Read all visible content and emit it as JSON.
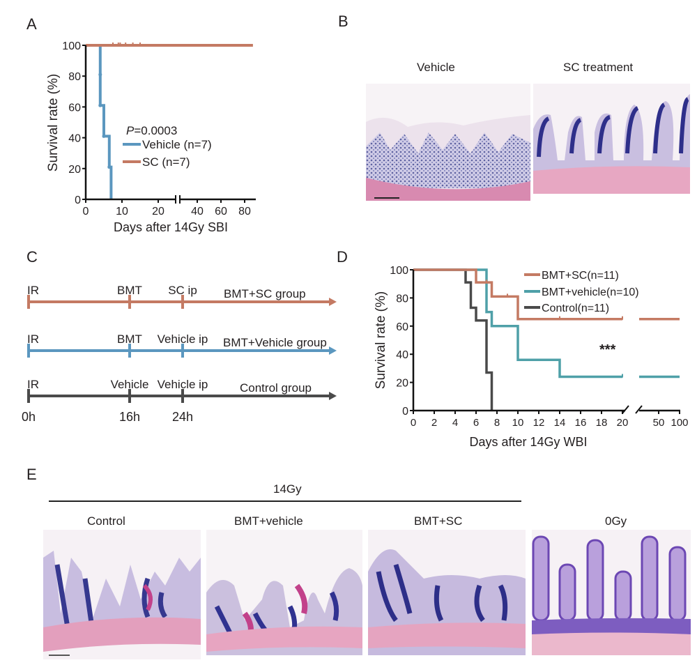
{
  "panels": {
    "A": "A",
    "B": "B",
    "C": "C",
    "D": "D",
    "E": "E"
  },
  "colors": {
    "sc": "#c47a63",
    "vehicle": "#5b97bf",
    "vehicle_d": "#4fa0a8",
    "control": "#4a4a4a",
    "axis": "#111111"
  },
  "chart_data": [
    {
      "id": "A",
      "type": "line",
      "title": "",
      "xlabel": "Days after 14Gy SBI",
      "ylabel": "Survival rate (%)",
      "ylim": [
        0,
        100
      ],
      "yticks": [
        "0",
        "20",
        "40",
        "60",
        "80",
        "100"
      ],
      "xticks": [
        "0",
        "10",
        "20",
        "40",
        "60",
        "80"
      ],
      "axis_break": "between 20 and 40",
      "annotation_prefix": "P",
      "annotation_rest": "=0.0003",
      "legend_placement": "center",
      "series": [
        {
          "name": "Vehicle (n=7)",
          "color_key": "vehicle",
          "steps": [
            [
              0,
              100
            ],
            [
              4,
              100
            ],
            [
              4,
              81
            ],
            [
              4,
              61
            ],
            [
              5,
              61
            ],
            [
              5,
              41
            ],
            [
              6.5,
              41
            ],
            [
              6.5,
              21
            ],
            [
              7,
              21
            ],
            [
              7,
              0
            ]
          ]
        },
        {
          "name": "SC (n=7)",
          "color_key": "sc",
          "steps": [
            [
              0,
              100
            ],
            [
              90,
              100
            ]
          ],
          "censored": [
            7.5,
            9,
            9.5,
            11,
            13,
            15
          ]
        }
      ]
    },
    {
      "id": "D",
      "type": "line",
      "title": "",
      "xlabel": "Days after 14Gy WBI",
      "ylabel": "Survival rate (%)",
      "ylim": [
        0,
        100
      ],
      "yticks": [
        "0",
        "20",
        "40",
        "60",
        "80",
        "100"
      ],
      "xticks": [
        "0",
        "2",
        "4",
        "6",
        "8",
        "10",
        "12",
        "14",
        "16",
        "18",
        "20",
        "50",
        "100"
      ],
      "axis_break": "between 20 and 50",
      "annotation": "***",
      "legend_placement": "top-right",
      "series": [
        {
          "name": "BMT+SC(n=11)",
          "color_key": "sc",
          "steps": [
            [
              0,
              100
            ],
            [
              6,
              100
            ],
            [
              6,
              91
            ],
            [
              7.5,
              91
            ],
            [
              7.5,
              81
            ],
            [
              10,
              81
            ],
            [
              10,
              65
            ],
            [
              20,
              65
            ]
          ],
          "after_break": 65,
          "censored": [
            7,
            9,
            14,
            20
          ]
        },
        {
          "name": "BMT+vehicle(n=10)",
          "color_key": "vehicle_d",
          "steps": [
            [
              0,
              100
            ],
            [
              7,
              100
            ],
            [
              7,
              90
            ],
            [
              7,
              70
            ],
            [
              7.5,
              70
            ],
            [
              7.5,
              60
            ],
            [
              10,
              60
            ],
            [
              10,
              36
            ],
            [
              14,
              36
            ],
            [
              14,
              24
            ],
            [
              20,
              24
            ]
          ],
          "after_break": 24,
          "censored": [
            20
          ]
        },
        {
          "name": "Control(n=11)",
          "color_key": "control",
          "steps": [
            [
              0,
              100
            ],
            [
              5,
              100
            ],
            [
              5,
              91
            ],
            [
              5.5,
              91
            ],
            [
              5.5,
              73
            ],
            [
              6,
              73
            ],
            [
              6,
              64
            ],
            [
              7,
              64
            ],
            [
              7,
              27
            ],
            [
              7.5,
              27
            ],
            [
              7.5,
              0
            ]
          ]
        }
      ]
    }
  ],
  "panel_b": {
    "captions": [
      "Vehicle",
      "SC treatment"
    ]
  },
  "panel_c": {
    "rows": [
      {
        "start": "IR",
        "mid": "BMT",
        "third": "SC ip",
        "group": "BMT+SC group",
        "color_key": "sc"
      },
      {
        "start": "IR",
        "mid": "BMT",
        "third": "Vehicle ip",
        "group": "BMT+Vehicle group",
        "color_key": "vehicle"
      },
      {
        "start": "IR",
        "mid": "Vehicle",
        "third": "Vehicle ip",
        "group": "Control group",
        "color_key": "control"
      }
    ],
    "times": [
      "0h",
      "16h",
      "24h"
    ]
  },
  "panel_e": {
    "bracket_label": "14Gy",
    "captions": [
      "Control",
      "BMT+vehicle",
      "BMT+SC",
      "0Gy"
    ]
  }
}
